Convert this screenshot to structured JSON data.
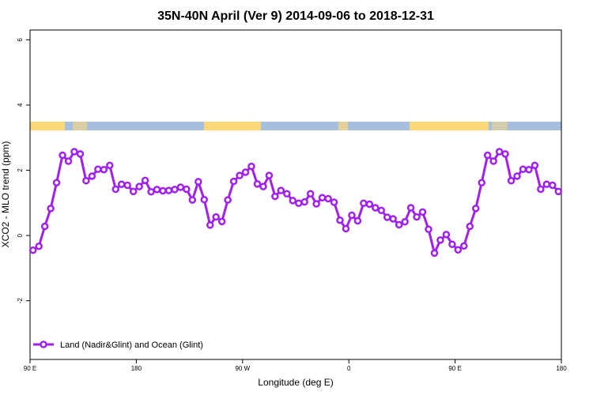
{
  "chart_data": {
    "type": "line",
    "title": "35N-40N April (Ver 9)   2014-09-06 to 2018-12-31",
    "xlabel": "Longitude (deg E)",
    "ylabel": "XCO2 - MLO trend (ppm)",
    "x": [
      92.5,
      97.5,
      102.5,
      107.5,
      112.5,
      117.5,
      122.5,
      127.5,
      132.5,
      137.5,
      142.5,
      147.5,
      152.5,
      157.5,
      162.5,
      167.5,
      172.5,
      177.5,
      182.5,
      187.5,
      192.5,
      197.5,
      202.5,
      207.5,
      212.5,
      217.5,
      222.5,
      227.5,
      232.5,
      237.5,
      242.5,
      247.5,
      252.5,
      257.5,
      262.5,
      267.5,
      272.5,
      277.5,
      282.5,
      287.5,
      292.5,
      297.5,
      302.5,
      307.5,
      312.5,
      317.5,
      322.5,
      327.5,
      332.5,
      337.5,
      342.5,
      347.5,
      352.5,
      357.5,
      362.5,
      367.5,
      372.5,
      377.5,
      382.5,
      387.5,
      392.5,
      397.5,
      402.5,
      407.5,
      412.5,
      417.5,
      422.5,
      427.5,
      432.5,
      437.5,
      442.5,
      447.5,
      452.5,
      457.5,
      462.5,
      467.5,
      472.5,
      477.5,
      482.5,
      487.5,
      492.5,
      497.5,
      502.5,
      507.5,
      512.5,
      517.5,
      522.5,
      527.5,
      532.5,
      537.5
    ],
    "series": [
      {
        "name": "Land (Nadir&Glint) and Ocean (Glint)",
        "color": "#a020f0",
        "values": [
          -0.45,
          -0.33,
          0.28,
          0.83,
          1.62,
          2.46,
          2.28,
          2.57,
          2.5,
          1.68,
          1.82,
          2.03,
          2.02,
          2.15,
          1.42,
          1.57,
          1.54,
          1.35,
          1.5,
          1.69,
          1.34,
          1.41,
          1.37,
          1.38,
          1.41,
          1.48,
          1.42,
          1.09,
          1.65,
          1.1,
          0.32,
          0.57,
          0.43,
          1.09,
          1.66,
          1.84,
          1.94,
          2.12,
          1.58,
          1.5,
          1.84,
          1.2,
          1.38,
          1.28,
          1.07,
          0.99,
          1.03,
          1.28,
          0.97,
          1.16,
          1.13,
          1.02,
          0.47,
          0.21,
          0.62,
          0.45,
          0.99,
          0.96,
          0.85,
          0.77,
          0.56,
          0.51,
          0.33,
          0.42,
          0.85,
          0.57,
          0.72,
          0.19,
          -0.54,
          -0.14,
          0.03,
          -0.27,
          -0.44,
          -0.32,
          0.28,
          0.83,
          1.62,
          2.46,
          2.28,
          2.57,
          2.5,
          1.68,
          1.82,
          2.03,
          2.02,
          2.15,
          1.42,
          1.57,
          1.54,
          1.35
        ]
      }
    ],
    "xlim": [
      90,
      540
    ],
    "xticks": [
      {
        "value": 90,
        "label": "90 E"
      },
      180,
      {
        "value": 270,
        "label": "90 W"
      },
      {
        "value": 360,
        "label": "0"
      },
      {
        "value": 450,
        "label": "90 E"
      },
      {
        "value": 540,
        "label": "180"
      }
    ],
    "ylim": [
      -3.8,
      6.3
    ],
    "yticks": [
      -2,
      0,
      2,
      4,
      6
    ],
    "legend": "bottom-left"
  }
}
